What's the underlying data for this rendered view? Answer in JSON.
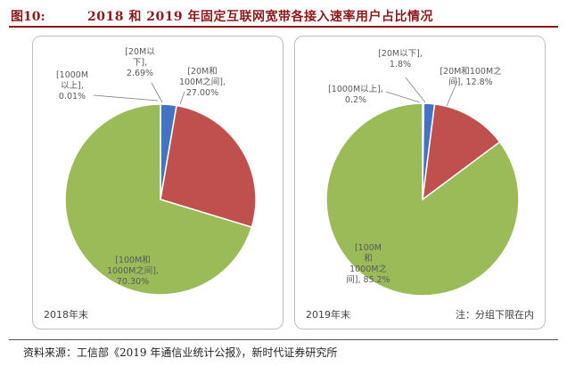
{
  "header": {
    "figure_number": "图10:",
    "title": "2018 和 2019 年固定互联网宽带各接入速率用户占比情况"
  },
  "chart_data": [
    {
      "type": "pie",
      "panel_label": "2018年末",
      "slices": [
        {
          "label_lines": [
            "[1000M",
            "以上],",
            "0.01%"
          ],
          "value": 0.01,
          "color": "#264478"
        },
        {
          "label_lines": [
            "[20M以",
            "下],",
            "2.69%"
          ],
          "value": 2.69,
          "color": "#4472c4"
        },
        {
          "label_lines": [
            "[20M和",
            "100M之间],",
            "27.00%"
          ],
          "value": 27.0,
          "color": "#c0504d"
        },
        {
          "label_lines": [
            "[100M和",
            "1000M之间],",
            "70.30%"
          ],
          "value": 70.3,
          "color": "#9bbb59"
        }
      ]
    },
    {
      "type": "pie",
      "panel_label": "2019年末",
      "note": "注：分组下限在内",
      "slices": [
        {
          "label_lines": [
            "[1000M以上],",
            "0.2%"
          ],
          "value": 0.2,
          "color": "#264478"
        },
        {
          "label_lines": [
            "[20M以下],",
            "1.8%"
          ],
          "value": 1.8,
          "color": "#4472c4"
        },
        {
          "label_lines": [
            "[20M和100M之",
            "间], 12.8%"
          ],
          "value": 12.8,
          "color": "#c0504d"
        },
        {
          "label_lines": [
            "[100M",
            "和",
            "1000M之",
            "间], 85.2%"
          ],
          "value": 85.2,
          "color": "#9bbb59"
        }
      ]
    }
  ],
  "footer": {
    "source": "资料来源：工信部《2019 年通信业统计公报》，新时代证券研究所"
  }
}
